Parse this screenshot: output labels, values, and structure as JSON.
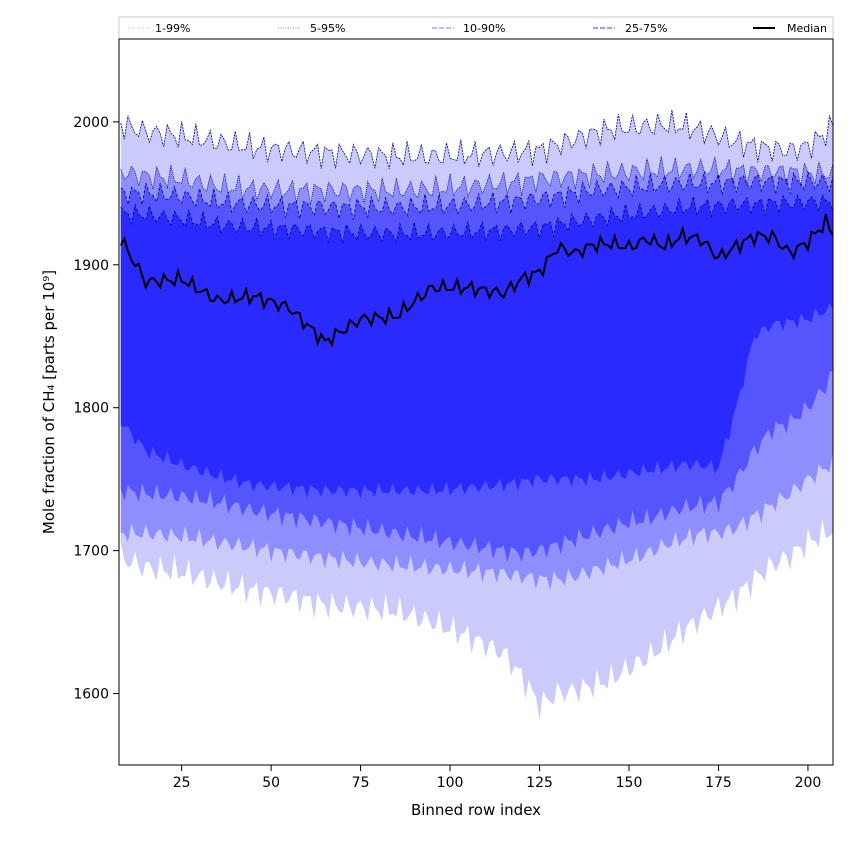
{
  "chart_data": {
    "type": "area",
    "title": "",
    "xlabel": "Binned row index",
    "ylabel": "Mole fraction of CH₄ [parts per 10⁹]",
    "xlim": [
      7.5,
      207
    ],
    "ylim": [
      1550,
      2058
    ],
    "xticks": [
      25,
      50,
      75,
      100,
      125,
      150,
      175,
      200
    ],
    "yticks": [
      1600,
      1700,
      1800,
      1900,
      2000
    ],
    "grid": false,
    "legend_position": "top (above plot area)",
    "colors": {
      "band_1_99": "#cbcbfb",
      "band_5_95": "#8e8efd",
      "band_10_90": "#5555fd",
      "band_25_75": "#2a2aff",
      "median": "#000000",
      "edge": "#00008b"
    },
    "legend": [
      {
        "label": "1-99%",
        "style": "dotted",
        "color": "#bbbbf8"
      },
      {
        "label": "5-95%",
        "style": "dotted",
        "color": "#7777f0"
      },
      {
        "label": "10-90%",
        "style": "dashed",
        "color": "#7a7af8"
      },
      {
        "label": "25-75%",
        "style": "dashed",
        "color": "#3a3aff"
      },
      {
        "label": "Median",
        "style": "solid",
        "color": "#000000"
      }
    ],
    "x": [
      8,
      15,
      25,
      35,
      45,
      55,
      65,
      75,
      85,
      95,
      105,
      115,
      120,
      125,
      130,
      135,
      140,
      145,
      150,
      155,
      160,
      165,
      170,
      175,
      180,
      185,
      190,
      195,
      200,
      205,
      207
    ],
    "series": [
      {
        "name": "P1",
        "values": [
          1695,
          1688,
          1685,
          1678,
          1672,
          1668,
          1662,
          1660,
          1658,
          1650,
          1640,
          1628,
          1612,
          1592,
          1600,
          1602,
          1606,
          1610,
          1618,
          1625,
          1634,
          1644,
          1652,
          1660,
          1668,
          1680,
          1690,
          1696,
          1706,
          1712,
          1715
        ]
      },
      {
        "name": "P5",
        "values": [
          1712,
          1712,
          1710,
          1706,
          1702,
          1698,
          1695,
          1692,
          1690,
          1688,
          1686,
          1684,
          1682,
          1680,
          1680,
          1682,
          1686,
          1690,
          1694,
          1698,
          1704,
          1708,
          1712,
          1712,
          1716,
          1724,
          1732,
          1740,
          1750,
          1758,
          1762
        ]
      },
      {
        "name": "P10",
        "values": [
          1742,
          1740,
          1738,
          1734,
          1728,
          1724,
          1720,
          1716,
          1712,
          1708,
          1704,
          1700,
          1698,
          1700,
          1704,
          1708,
          1712,
          1716,
          1720,
          1722,
          1726,
          1730,
          1732,
          1734,
          1750,
          1770,
          1785,
          1790,
          1800,
          1815,
          1825
        ]
      },
      {
        "name": "P25",
        "values": [
          1790,
          1770,
          1760,
          1752,
          1746,
          1744,
          1742,
          1742,
          1742,
          1742,
          1744,
          1746,
          1748,
          1750,
          1750,
          1750,
          1750,
          1752,
          1754,
          1756,
          1758,
          1760,
          1760,
          1758,
          1800,
          1850,
          1858,
          1860,
          1862,
          1868,
          1870
        ]
      },
      {
        "name": "Median",
        "values": [
          1918,
          1888,
          1890,
          1875,
          1878,
          1870,
          1846,
          1862,
          1864,
          1884,
          1884,
          1880,
          1890,
          1895,
          1912,
          1908,
          1914,
          1915,
          1912,
          1918,
          1913,
          1920,
          1918,
          1905,
          1913,
          1920,
          1920,
          1908,
          1916,
          1930,
          1922
        ]
      },
      {
        "name": "P75",
        "values": [
          1936,
          1935,
          1932,
          1928,
          1926,
          1925,
          1923,
          1922,
          1922,
          1922,
          1923,
          1924,
          1925,
          1926,
          1928,
          1930,
          1932,
          1934,
          1935,
          1937,
          1938,
          1940,
          1941,
          1941,
          1942,
          1942,
          1943,
          1943,
          1944,
          1944,
          1944
        ]
      },
      {
        "name": "P90",
        "values": [
          1950,
          1950,
          1948,
          1944,
          1942,
          1941,
          1940,
          1940,
          1940,
          1941,
          1942,
          1944,
          1945,
          1946,
          1948,
          1950,
          1952,
          1953,
          1954,
          1955,
          1956,
          1957,
          1957,
          1957,
          1958,
          1958,
          1958,
          1958,
          1958,
          1958,
          1958
        ]
      },
      {
        "name": "P95",
        "values": [
          1965,
          1962,
          1960,
          1955,
          1953,
          1952,
          1952,
          1952,
          1952,
          1953,
          1955,
          1957,
          1958,
          1960,
          1961,
          1962,
          1963,
          1964,
          1965,
          1966,
          1966,
          1967,
          1967,
          1967,
          1966,
          1965,
          1965,
          1965,
          1964,
          1964,
          1964
        ]
      },
      {
        "name": "P99",
        "values": [
          1998,
          1993,
          1990,
          1986,
          1982,
          1980,
          1978,
          1977,
          1976,
          1976,
          1977,
          1978,
          1979,
          1980,
          1984,
          1988,
          1992,
          1995,
          1996,
          1997,
          1998,
          1997,
          1994,
          1990,
          1986,
          1983,
          1981,
          1980,
          1983,
          1992,
          1998
        ]
      }
    ]
  }
}
